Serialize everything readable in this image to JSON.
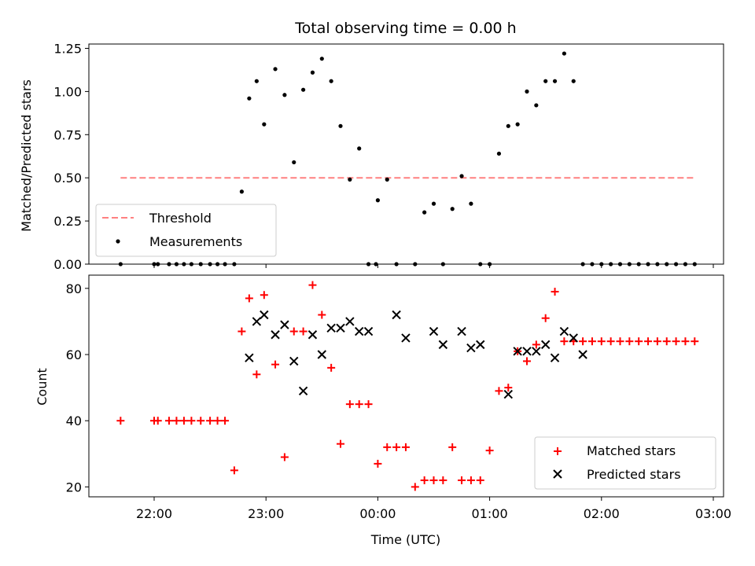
{
  "chart_data": [
    {
      "type": "scatter",
      "title": "Total observing time = 0.00 h",
      "xlabel": "",
      "ylabel": "Matched/Predicted stars",
      "ylim": [
        0,
        1.275
      ],
      "yticks": [
        "0.00",
        "0.25",
        "0.50",
        "0.75",
        "1.00",
        "1.25"
      ],
      "threshold": {
        "name": "Threshold",
        "value": 0.5,
        "x_start": "21:42",
        "x_end": "02:50",
        "color": "#ff8080"
      },
      "series": [
        {
          "name": "Measurements",
          "color": "#000000",
          "x": [
            "21:42",
            "22:00",
            "22:02",
            "22:08",
            "22:12",
            "22:16",
            "22:20",
            "22:25",
            "22:30",
            "22:34",
            "22:38",
            "22:43",
            "22:47",
            "22:51",
            "22:55",
            "22:59",
            "23:05",
            "23:10",
            "23:15",
            "23:20",
            "23:25",
            "23:30",
            "23:35",
            "23:40",
            "23:45",
            "23:50",
            "23:55",
            "23:59",
            "24:00",
            "00:05",
            "00:10",
            "00:20",
            "00:25",
            "00:30",
            "00:35",
            "00:40",
            "00:45",
            "00:50",
            "00:55",
            "01:00",
            "01:05",
            "01:10",
            "01:15",
            "01:20",
            "01:25",
            "01:30",
            "01:35",
            "01:40",
            "01:45",
            "01:50",
            "01:55",
            "02:00",
            "02:05",
            "02:10",
            "02:15",
            "02:20",
            "02:25",
            "02:30",
            "02:35",
            "02:40",
            "02:45",
            "02:50"
          ],
          "y": [
            0,
            0,
            0,
            0,
            0,
            0,
            0,
            0,
            0,
            0,
            0,
            0,
            0.42,
            0.96,
            1.06,
            0.81,
            1.13,
            0.98,
            0.59,
            1.01,
            1.11,
            1.19,
            1.06,
            0.8,
            0.49,
            0.67,
            0,
            0,
            0.37,
            0.49,
            0,
            0,
            0.3,
            0.35,
            0,
            0.32,
            0.51,
            0.35,
            0,
            0,
            0.64,
            0.8,
            0.81,
            1.0,
            0.92,
            1.06,
            1.06,
            1.22,
            1.06,
            0,
            0,
            0,
            0,
            0,
            0,
            0,
            0,
            0,
            0,
            0,
            0,
            0
          ]
        }
      ],
      "legend": "lower-left"
    },
    {
      "type": "scatter",
      "xlabel": "Time (UTC)",
      "ylabel": "Count",
      "xticks": [
        "22:00",
        "23:00",
        "00:00",
        "01:00",
        "02:00",
        "03:00"
      ],
      "yticks": [
        "20",
        "40",
        "60",
        "80"
      ],
      "ylim": [
        17,
        84
      ],
      "series": [
        {
          "name": "Matched stars",
          "color": "#ff0000",
          "marker": "plus",
          "x": [
            "21:42",
            "22:00",
            "22:02",
            "22:08",
            "22:12",
            "22:16",
            "22:20",
            "22:25",
            "22:30",
            "22:34",
            "22:38",
            "22:43",
            "22:47",
            "22:51",
            "22:55",
            "22:59",
            "23:05",
            "23:10",
            "23:15",
            "23:20",
            "23:25",
            "23:30",
            "23:35",
            "23:40",
            "23:45",
            "23:50",
            "23:55",
            "00:00",
            "00:05",
            "00:10",
            "00:15",
            "00:20",
            "00:25",
            "00:30",
            "00:35",
            "00:40",
            "00:45",
            "00:50",
            "00:55",
            "01:00",
            "01:05",
            "01:10",
            "01:15",
            "01:20",
            "01:25",
            "01:30",
            "01:35",
            "01:40",
            "01:45",
            "01:50",
            "01:55",
            "02:00",
            "02:05",
            "02:10",
            "02:15",
            "02:20",
            "02:25",
            "02:30",
            "02:35",
            "02:40",
            "02:45",
            "02:50"
          ],
          "y": [
            40,
            40,
            40,
            40,
            40,
            40,
            40,
            40,
            40,
            40,
            40,
            25,
            67,
            77,
            54,
            78,
            57,
            29,
            67,
            67,
            81,
            72,
            56,
            33,
            45,
            45,
            45,
            27,
            32,
            32,
            32,
            20,
            22,
            22,
            22,
            32,
            22,
            22,
            22,
            31,
            49,
            50,
            61,
            58,
            63,
            71,
            79,
            64,
            64,
            64,
            64,
            64,
            64,
            64,
            64,
            64,
            64,
            64,
            64,
            64,
            64,
            64
          ]
        },
        {
          "name": "Predicted stars",
          "color": "#000000",
          "marker": "x",
          "x": [
            "22:51",
            "22:55",
            "22:59",
            "23:05",
            "23:10",
            "23:15",
            "23:20",
            "23:25",
            "23:30",
            "23:35",
            "23:40",
            "23:45",
            "23:50",
            "23:55",
            "00:10",
            "00:15",
            "00:30",
            "00:35",
            "00:45",
            "00:50",
            "00:55",
            "01:10",
            "01:15",
            "01:20",
            "01:25",
            "01:30",
            "01:35",
            "01:40",
            "01:45",
            "01:50"
          ],
          "y": [
            59,
            70,
            72,
            66,
            69,
            58,
            49,
            66,
            60,
            68,
            68,
            70,
            67,
            67,
            72,
            65,
            67,
            63,
            67,
            62,
            63,
            48,
            61,
            61,
            61,
            63,
            59,
            67,
            65,
            60
          ]
        }
      ],
      "legend": "lower-right"
    }
  ]
}
